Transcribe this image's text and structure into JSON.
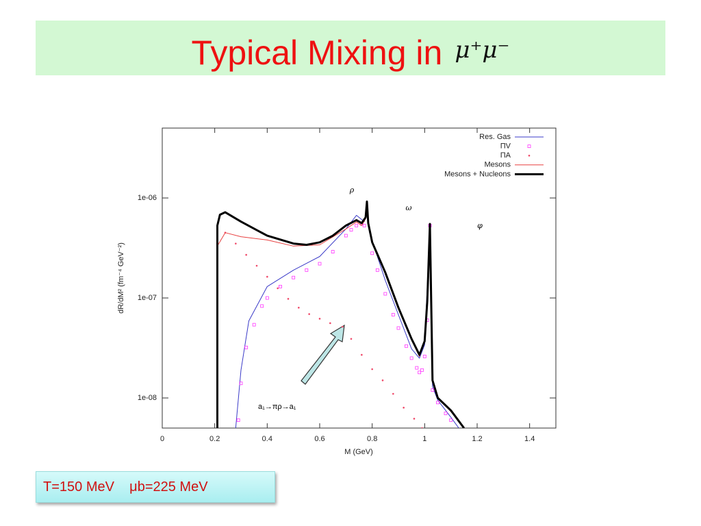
{
  "slide": {
    "title": "Typical Mixing in",
    "title_math": "μ⁺μ⁻",
    "note": "T=150 MeV    μb=225 MeV"
  },
  "chart_data": {
    "type": "line",
    "x_label": "M (GeV)",
    "y_label": "dR/dM² (fm⁻⁴ GeV⁻²)",
    "xlim": [
      0,
      1.5
    ],
    "xticks": [
      0,
      0.2,
      0.4,
      0.6,
      0.8,
      1,
      1.2,
      1.4
    ],
    "ylim": [
      5e-09,
      5e-06
    ],
    "log_y": true,
    "yticks": [
      {
        "value": 1e-08,
        "label": "1e-08"
      },
      {
        "value": 1e-07,
        "label": "1e-07"
      },
      {
        "value": 1e-06,
        "label": "1e-06"
      }
    ],
    "legend": "top-right",
    "series": [
      {
        "name": "Res. Gas",
        "color": "#3a3ac8",
        "style": "line",
        "line_width": 1,
        "x": [
          0.28,
          0.3,
          0.33,
          0.4,
          0.5,
          0.6,
          0.7,
          0.74,
          0.77,
          0.78,
          0.79,
          0.85,
          0.9,
          0.95,
          0.98,
          1.0,
          1.02,
          1.03,
          1.05,
          1.1,
          1.13
        ],
        "values": [
          5e-09,
          1.9e-08,
          5.9e-08,
          1.3e-07,
          1.9e-07,
          2.6e-07,
          4.9e-07,
          6.7e-07,
          5.8e-07,
          7.9e-07,
          4.5e-07,
          1.5e-07,
          6.8e-08,
          3.1e-08,
          2.5e-08,
          3.4e-08,
          5.3e-07,
          1.3e-08,
          9.5e-09,
          6.4e-09,
          5e-09
        ]
      },
      {
        "name": "ΠV",
        "color": "#ff33ff",
        "style": "square",
        "x": [
          0.29,
          0.3,
          0.32,
          0.35,
          0.38,
          0.4,
          0.45,
          0.5,
          0.55,
          0.6,
          0.65,
          0.7,
          0.72,
          0.74,
          0.76,
          0.77,
          0.8,
          0.82,
          0.85,
          0.88,
          0.9,
          0.93,
          0.95,
          0.97,
          0.98,
          0.99,
          1.0,
          1.01,
          1.02,
          1.03,
          1.05,
          1.08,
          1.1
        ],
        "values": [
          6e-09,
          1.4e-08,
          3.2e-08,
          5.4e-08,
          8.3e-08,
          1e-07,
          1.3e-07,
          1.6e-07,
          1.9e-07,
          2.2e-07,
          2.9e-07,
          4.2e-07,
          4.8e-07,
          5.3e-07,
          5.5e-07,
          5.3e-07,
          2.8e-07,
          1.9e-07,
          1.1e-07,
          6.8e-08,
          5e-08,
          3.3e-08,
          2.5e-08,
          2e-08,
          1.8e-08,
          1.9e-08,
          2.6e-08,
          6e-08,
          5.3e-07,
          1.2e-08,
          9e-09,
          7e-09,
          6e-09
        ]
      },
      {
        "name": "ΠA",
        "color": "#f04a6a",
        "style": "dot",
        "x": [
          0.24,
          0.28,
          0.32,
          0.36,
          0.4,
          0.44,
          0.48,
          0.52,
          0.56,
          0.6,
          0.64,
          0.687,
          0.72,
          0.76,
          0.8,
          0.84,
          0.88,
          0.92,
          0.96,
          0.99
        ],
        "values": [
          4.5e-07,
          3.5e-07,
          2.7e-07,
          2.1e-07,
          1.63e-07,
          1.25e-07,
          9.8e-08,
          8e-08,
          6.9e-08,
          6.2e-08,
          5.6e-08,
          5.15e-08,
          3.9e-08,
          2.7e-08,
          1.94e-08,
          1.5e-08,
          1.1e-08,
          8e-09,
          6.2e-09,
          5e-09
        ]
      },
      {
        "name": "Mesons",
        "color": "#e84040",
        "style": "line",
        "line_width": 1,
        "x": [
          0.21,
          0.21,
          0.24,
          0.3,
          0.4,
          0.5,
          0.6,
          0.7,
          0.74,
          0.76,
          0.775,
          0.78,
          0.785,
          0.8,
          0.85,
          0.9,
          0.95,
          0.98,
          1.0,
          1.01,
          1.02,
          1.025,
          1.03,
          1.05,
          1.1,
          1.15
        ],
        "values": [
          5e-09,
          3.3e-07,
          4.5e-07,
          4.1e-07,
          3.8e-07,
          3.3e-07,
          3.4e-07,
          4.9e-07,
          5.75e-07,
          5.3e-07,
          6.2e-07,
          9e-07,
          5.4e-07,
          3.5e-07,
          1.75e-07,
          7.8e-08,
          3.8e-08,
          2.6e-08,
          3.6e-08,
          9.2e-08,
          5.4e-07,
          8.8e-08,
          1.45e-08,
          1e-08,
          7.3e-09,
          5e-09
        ]
      },
      {
        "name": "Mesons + Nucleons",
        "color": "#000000",
        "style": "line",
        "line_width": 3,
        "x": [
          0.21,
          0.21,
          0.22,
          0.24,
          0.3,
          0.4,
          0.5,
          0.55,
          0.6,
          0.65,
          0.7,
          0.74,
          0.76,
          0.775,
          0.78,
          0.785,
          0.8,
          0.85,
          0.9,
          0.95,
          0.98,
          1.0,
          1.01,
          1.02,
          1.025,
          1.03,
          1.05,
          1.1,
          1.15
        ],
        "values": [
          5e-09,
          5.3e-07,
          6.8e-07,
          7.2e-07,
          5.8e-07,
          4.2e-07,
          3.5e-07,
          3.4e-07,
          3.6e-07,
          4.2e-07,
          5.3e-07,
          6e-07,
          5.6e-07,
          6.4e-07,
          9.2e-07,
          5.6e-07,
          3.6e-07,
          1.8e-07,
          8e-08,
          3.9e-08,
          2.7e-08,
          3.7e-08,
          9.4e-08,
          5.5e-07,
          9e-08,
          1.5e-08,
          1e-08,
          7.5e-09,
          5e-09
        ]
      }
    ],
    "annotations": [
      "ρ",
      "ω",
      "φ",
      "a₁→πρ→a₁"
    ]
  }
}
